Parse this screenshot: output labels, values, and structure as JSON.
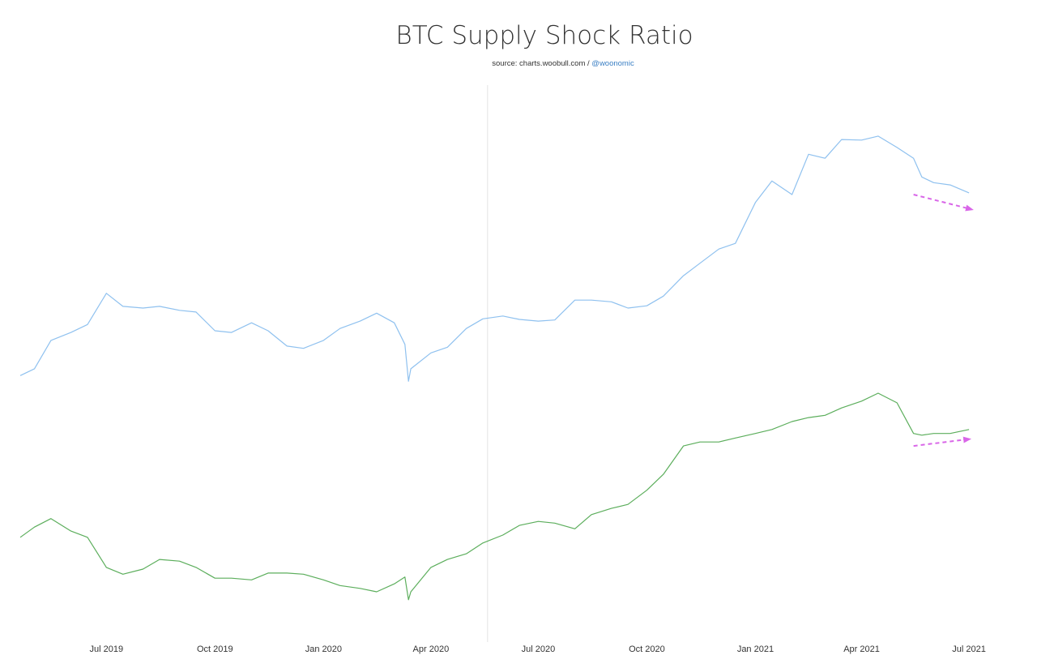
{
  "chart_data": {
    "type": "line",
    "title": "BTC Supply Shock Ratio",
    "subtitle": {
      "source": "source: charts.woobull.com / ",
      "handle": "@woonomic"
    },
    "xlabel": "",
    "ylabel": "",
    "xlim": [
      "2019-04-19",
      "2021-07-03"
    ],
    "ylim": [
      0,
      100
    ],
    "grid": false,
    "legend": "none",
    "x_tick_labels": [
      {
        "date": "2019-07-01",
        "label": "Jul 2019"
      },
      {
        "date": "2019-10-01",
        "label": "Oct 2019"
      },
      {
        "date": "2020-01-01",
        "label": "Jan 2020"
      },
      {
        "date": "2020-04-01",
        "label": "Apr 2020"
      },
      {
        "date": "2020-07-01",
        "label": "Jul 2020"
      },
      {
        "date": "2020-10-01",
        "label": "Oct 2020"
      },
      {
        "date": "2021-01-01",
        "label": "Jan 2021"
      },
      {
        "date": "2021-04-01",
        "label": "Apr 2021"
      },
      {
        "date": "2021-07-01",
        "label": "Jul 2021"
      }
    ],
    "x": [
      "2019-04-19",
      "2019-05-01",
      "2019-05-15",
      "2019-06-01",
      "2019-06-15",
      "2019-07-01",
      "2019-07-15",
      "2019-08-01",
      "2019-08-15",
      "2019-09-01",
      "2019-09-15",
      "2019-10-01",
      "2019-10-15",
      "2019-11-01",
      "2019-11-15",
      "2019-12-01",
      "2019-12-15",
      "2020-01-01",
      "2020-01-15",
      "2020-02-01",
      "2020-02-15",
      "2020-03-01",
      "2020-03-10",
      "2020-03-13",
      "2020-03-15",
      "2020-04-01",
      "2020-04-15",
      "2020-05-01",
      "2020-05-15",
      "2020-06-01",
      "2020-06-15",
      "2020-07-01",
      "2020-07-15",
      "2020-08-01",
      "2020-08-15",
      "2020-09-01",
      "2020-09-15",
      "2020-10-01",
      "2020-10-15",
      "2020-11-01",
      "2020-11-15",
      "2020-12-01",
      "2020-12-15",
      "2021-01-01",
      "2021-01-15",
      "2021-02-01",
      "2021-02-15",
      "2021-03-01",
      "2021-03-15",
      "2021-04-01",
      "2021-04-15",
      "2021-05-01",
      "2021-05-15",
      "2021-05-22",
      "2021-06-01",
      "2021-06-15",
      "2021-07-01"
    ],
    "series": [
      {
        "color": "#8fc1ef",
        "values": [
          48.1,
          49.3,
          54.3,
          55.7,
          57.1,
          62.6,
          60.3,
          60.0,
          60.3,
          59.6,
          59.3,
          56.0,
          55.7,
          57.4,
          56.0,
          53.3,
          52.9,
          54.3,
          56.4,
          57.7,
          59.1,
          57.4,
          53.6,
          47.1,
          49.3,
          52.1,
          53.1,
          56.4,
          58.1,
          58.6,
          58.0,
          57.7,
          57.9,
          61.4,
          61.4,
          61.1,
          60.0,
          60.4,
          62.1,
          65.7,
          67.9,
          70.4,
          71.4,
          78.6,
          82.4,
          80.0,
          87.1,
          86.4,
          89.7,
          89.6,
          90.3,
          88.3,
          86.4,
          83.1,
          82.1,
          81.7,
          80.3
        ]
      },
      {
        "color": "#5cae5c",
        "values": [
          19.6,
          21.4,
          22.9,
          20.7,
          19.6,
          14.3,
          13.1,
          14.0,
          15.7,
          15.4,
          14.3,
          12.4,
          12.4,
          12.1,
          13.3,
          13.3,
          13.1,
          12.1,
          11.1,
          10.6,
          10.0,
          11.4,
          12.6,
          8.6,
          10.0,
          14.3,
          15.7,
          16.7,
          18.6,
          20.0,
          21.7,
          22.4,
          22.1,
          21.1,
          23.6,
          24.7,
          25.4,
          27.9,
          30.7,
          35.7,
          36.4,
          36.4,
          37.1,
          37.9,
          38.6,
          40.0,
          40.7,
          41.1,
          42.4,
          43.6,
          45.0,
          43.3,
          37.9,
          37.6,
          37.9,
          37.9,
          38.6
        ]
      }
    ],
    "annotations": [
      {
        "type": "dashed-arrow",
        "color": "#d966e8",
        "from": [
          "2021-05-15",
          80.0
        ],
        "to": [
          "2021-07-03",
          77.4
        ]
      },
      {
        "type": "dashed-arrow",
        "color": "#d966e8",
        "from": [
          "2021-05-15",
          35.7
        ],
        "to": [
          "2021-07-01",
          36.9
        ]
      }
    ],
    "crosshair_date": "2020-05-19"
  }
}
